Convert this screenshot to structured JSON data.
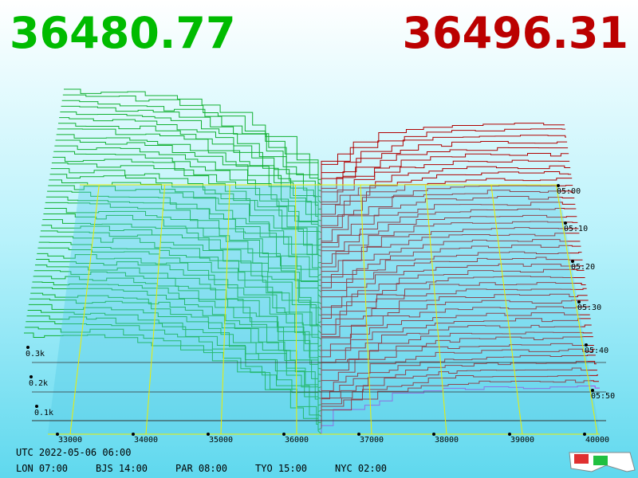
{
  "header": {
    "bid": "36480.77",
    "ask": "36496.31"
  },
  "price_axis": {
    "labels": [
      "33000",
      "34000",
      "35000",
      "36000",
      "37000",
      "38000",
      "39000",
      "40000"
    ]
  },
  "depth_axis": {
    "labels": [
      "0.3k",
      "0.2k",
      "0.1k"
    ]
  },
  "time_axis": {
    "labels": [
      "05:00",
      "05:10",
      "05:20",
      "05:30",
      "05:40",
      "05:50"
    ]
  },
  "footer": {
    "utc": "UTC 2022-05-06 06:00",
    "clocks": [
      "LON 07:00",
      "BJS 14:00",
      "PAR 08:00",
      "TYO 15:00",
      "NYC 02:00"
    ]
  }
}
